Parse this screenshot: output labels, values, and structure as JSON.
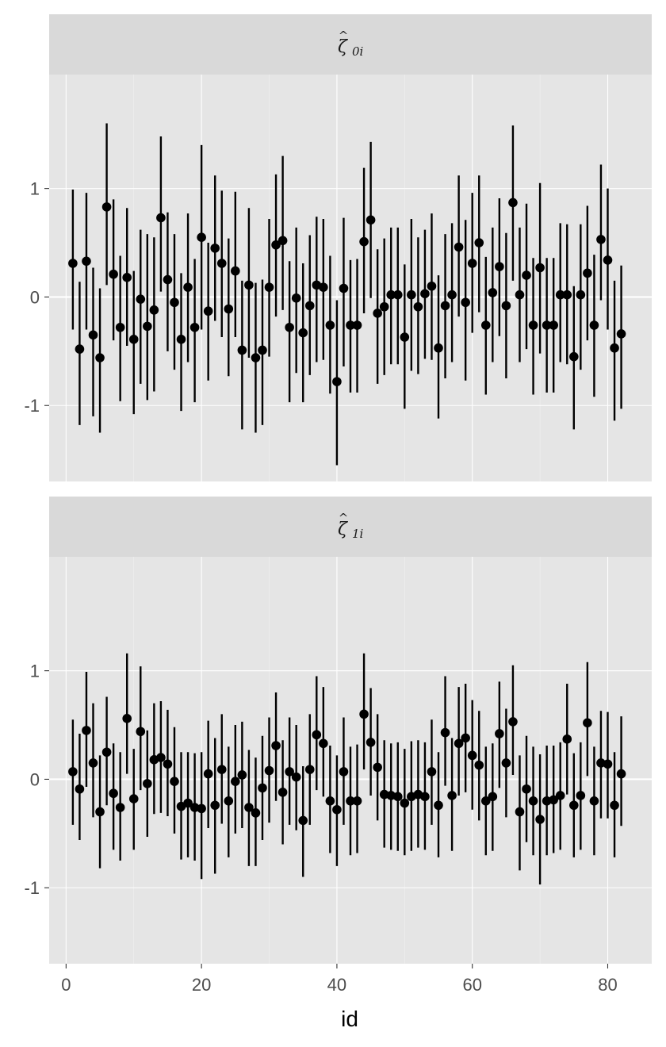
{
  "chart_data": {
    "type": "scatter",
    "subtype": "pointrange",
    "xlabel": "id",
    "ylabel": "",
    "xlim": [
      -2.5,
      86.5
    ],
    "ylim": [
      -1.7,
      2.05
    ],
    "x_ticks": [
      0,
      20,
      40,
      60,
      80
    ],
    "y_ticks": [
      -1,
      0,
      1
    ],
    "grid": true,
    "panels": [
      {
        "strip": {
          "symbol": "ζ",
          "accent": "^",
          "subscript": "0i"
        },
        "series": [
          {
            "name": "",
            "x": [
              1,
              2,
              3,
              4,
              5,
              6,
              7,
              8,
              9,
              10,
              11,
              12,
              13,
              14,
              15,
              16,
              17,
              18,
              19,
              20,
              21,
              22,
              23,
              24,
              25,
              26,
              27,
              28,
              29,
              30,
              31,
              32,
              33,
              34,
              35,
              36,
              37,
              38,
              39,
              40,
              41,
              42,
              43,
              44,
              45,
              46,
              47,
              48,
              49,
              50,
              51,
              52,
              53,
              54,
              55,
              56,
              57,
              58,
              59,
              60,
              61,
              62,
              63,
              64,
              65,
              66,
              67,
              68,
              69,
              70,
              71,
              72,
              73,
              74,
              75,
              76,
              77,
              78,
              79,
              80,
              81,
              82
            ],
            "y": [
              0.31,
              -0.48,
              0.33,
              -0.35,
              -0.56,
              0.83,
              0.21,
              -0.28,
              0.18,
              -0.39,
              -0.02,
              -0.27,
              -0.12,
              0.73,
              0.16,
              -0.05,
              -0.39,
              0.09,
              -0.28,
              0.55,
              -0.13,
              0.45,
              0.31,
              -0.11,
              0.24,
              -0.49,
              0.11,
              -0.56,
              -0.49,
              0.09,
              0.48,
              0.52,
              -0.28,
              -0.01,
              -0.33,
              -0.08,
              0.11,
              0.09,
              -0.26,
              -0.78,
              0.08,
              -0.26,
              -0.26,
              0.51,
              0.71,
              -0.15,
              -0.09,
              0.02,
              0.02,
              -0.37,
              0.02,
              -0.09,
              0.03,
              0.1,
              -0.47,
              -0.08,
              0.02,
              0.46,
              -0.05,
              0.31,
              0.5,
              -0.26,
              0.04,
              0.28,
              -0.08,
              0.87,
              0.02,
              0.2,
              -0.26,
              0.27,
              -0.26,
              -0.26,
              0.02,
              0.02,
              -0.55,
              0.02,
              0.22,
              -0.26,
              0.53,
              0.34,
              -0.47,
              -0.34
            ],
            "ymin": [
              -0.3,
              -1.18,
              -0.3,
              -1.1,
              -1.25,
              0.11,
              -0.4,
              -0.96,
              -0.45,
              -1.08,
              -0.8,
              -0.95,
              -0.87,
              0.05,
              -0.5,
              -0.67,
              -1.05,
              -0.6,
              -0.97,
              -0.3,
              -0.77,
              -0.22,
              -0.37,
              -0.73,
              -0.37,
              -1.22,
              -0.56,
              -1.25,
              -1.18,
              -0.55,
              -0.18,
              -0.12,
              -0.97,
              -0.7,
              -0.97,
              -0.72,
              -0.6,
              -0.58,
              -0.89,
              -1.55,
              -0.64,
              -0.88,
              -0.88,
              -0.15,
              -0.01,
              -0.8,
              -0.72,
              -0.62,
              -0.62,
              -1.03,
              -0.68,
              -0.71,
              -0.57,
              -0.58,
              -1.12,
              -0.75,
              -0.6,
              -0.18,
              -0.77,
              -0.33,
              -0.14,
              -0.9,
              -0.6,
              -0.36,
              -0.75,
              0.15,
              -0.6,
              -0.48,
              -0.9,
              -0.52,
              -0.88,
              -0.88,
              -0.6,
              -0.62,
              -1.22,
              -0.67,
              -0.4,
              -0.92,
              -0.03,
              -0.3,
              -1.14,
              -1.03
            ],
            "ymax": [
              0.99,
              0.14,
              0.96,
              0.27,
              0.08,
              1.6,
              0.9,
              0.38,
              0.82,
              0.24,
              0.62,
              0.58,
              0.55,
              1.48,
              0.78,
              0.58,
              0.22,
              0.77,
              0.35,
              1.4,
              0.5,
              1.12,
              0.98,
              0.54,
              0.97,
              0.15,
              0.82,
              0.13,
              0.16,
              0.72,
              1.13,
              1.3,
              0.33,
              0.64,
              0.31,
              0.57,
              0.74,
              0.72,
              0.38,
              -0.03,
              0.73,
              0.34,
              0.35,
              1.19,
              1.43,
              0.44,
              0.54,
              0.64,
              0.64,
              0.3,
              0.72,
              0.55,
              0.62,
              0.77,
              0.2,
              0.58,
              0.68,
              1.12,
              0.71,
              0.96,
              1.12,
              0.37,
              0.64,
              0.91,
              0.59,
              1.58,
              0.64,
              0.86,
              0.36,
              1.05,
              0.36,
              0.36,
              0.68,
              0.67,
              0.1,
              0.67,
              0.84,
              0.39,
              1.22,
              1.0,
              0.15,
              0.29
            ]
          }
        ]
      },
      {
        "strip": {
          "symbol": "ζ",
          "accent": "^",
          "subscript": "1i"
        },
        "series": [
          {
            "name": "",
            "x": [
              1,
              2,
              3,
              4,
              5,
              6,
              7,
              8,
              9,
              10,
              11,
              12,
              13,
              14,
              15,
              16,
              17,
              18,
              19,
              20,
              21,
              22,
              23,
              24,
              25,
              26,
              27,
              28,
              29,
              30,
              31,
              32,
              33,
              34,
              35,
              36,
              37,
              38,
              39,
              40,
              41,
              42,
              43,
              44,
              45,
              46,
              47,
              48,
              49,
              50,
              51,
              52,
              53,
              54,
              55,
              56,
              57,
              58,
              59,
              60,
              61,
              62,
              63,
              64,
              65,
              66,
              67,
              68,
              69,
              70,
              71,
              72,
              73,
              74,
              75,
              76,
              77,
              78,
              79,
              80,
              81,
              82
            ],
            "y": [
              0.07,
              -0.09,
              0.45,
              0.15,
              -0.3,
              0.25,
              -0.13,
              -0.26,
              0.56,
              -0.18,
              0.44,
              -0.04,
              0.18,
              0.2,
              0.14,
              -0.02,
              -0.25,
              -0.22,
              -0.26,
              -0.27,
              0.05,
              -0.24,
              0.09,
              -0.2,
              -0.02,
              0.04,
              -0.26,
              -0.31,
              -0.08,
              0.08,
              0.31,
              -0.12,
              0.07,
              0.02,
              -0.38,
              0.09,
              0.41,
              0.33,
              -0.2,
              -0.28,
              0.07,
              -0.2,
              -0.2,
              0.6,
              0.34,
              0.11,
              -0.14,
              -0.15,
              -0.16,
              -0.22,
              -0.16,
              -0.14,
              -0.16,
              0.07,
              -0.24,
              0.43,
              -0.15,
              0.33,
              0.38,
              0.22,
              0.13,
              -0.2,
              -0.16,
              0.42,
              0.15,
              0.53,
              -0.3,
              -0.09,
              -0.2,
              -0.37,
              -0.2,
              -0.19,
              -0.15,
              0.37,
              -0.24,
              -0.15,
              0.52,
              -0.2,
              0.15,
              0.14,
              -0.24,
              0.05
            ],
            "ymin": [
              -0.42,
              -0.56,
              -0.07,
              -0.35,
              -0.82,
              -0.24,
              -0.65,
              -0.75,
              0.05,
              -0.65,
              -0.1,
              -0.53,
              -0.32,
              -0.31,
              -0.34,
              -0.5,
              -0.74,
              -0.72,
              -0.75,
              -0.92,
              -0.45,
              -0.87,
              -0.41,
              -0.72,
              -0.5,
              -0.45,
              -0.8,
              -0.8,
              -0.56,
              -0.4,
              -0.2,
              -0.6,
              -0.42,
              -0.47,
              -0.9,
              -0.42,
              -0.1,
              -0.16,
              -0.68,
              -0.8,
              -0.42,
              -0.7,
              -0.68,
              0.09,
              -0.15,
              -0.38,
              -0.63,
              -0.65,
              -0.66,
              -0.7,
              -0.66,
              -0.63,
              -0.65,
              -0.42,
              -0.72,
              -0.06,
              -0.66,
              -0.15,
              -0.12,
              -0.28,
              -0.38,
              -0.7,
              -0.66,
              -0.08,
              -0.35,
              0.04,
              -0.84,
              -0.58,
              -0.7,
              -0.97,
              -0.7,
              -0.68,
              -0.65,
              -0.14,
              -0.72,
              -0.65,
              0.03,
              -0.7,
              -0.36,
              -0.36,
              -0.72,
              -0.43
            ],
            "ymax": [
              0.55,
              0.42,
              0.99,
              0.7,
              0.22,
              0.76,
              0.33,
              0.25,
              1.16,
              0.28,
              1.04,
              0.45,
              0.7,
              0.72,
              0.64,
              0.48,
              0.25,
              0.25,
              0.24,
              0.25,
              0.54,
              0.38,
              0.6,
              0.3,
              0.5,
              0.53,
              0.27,
              0.2,
              0.4,
              0.57,
              0.8,
              0.36,
              0.57,
              0.5,
              0.12,
              0.6,
              0.95,
              0.85,
              0.31,
              0.22,
              0.57,
              0.3,
              0.32,
              1.16,
              0.84,
              0.6,
              0.36,
              0.33,
              0.34,
              0.28,
              0.35,
              0.36,
              0.34,
              0.55,
              0.25,
              0.95,
              0.38,
              0.85,
              0.88,
              0.73,
              0.63,
              0.3,
              0.33,
              0.9,
              0.65,
              1.05,
              0.22,
              0.4,
              0.3,
              0.23,
              0.31,
              0.31,
              0.34,
              0.88,
              0.24,
              0.34,
              1.08,
              0.3,
              0.63,
              0.62,
              0.25,
              0.58
            ]
          }
        ]
      }
    ]
  }
}
